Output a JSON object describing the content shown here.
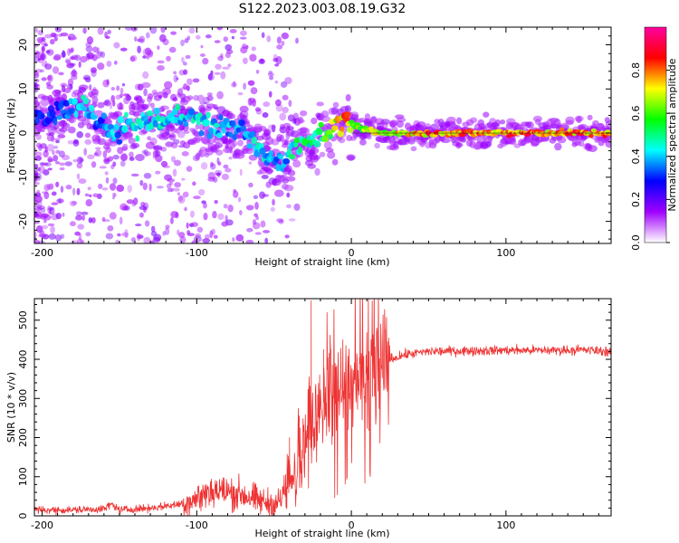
{
  "title": "S122.2023.003.08.19.G32",
  "chart_data": [
    {
      "type": "heatmap",
      "name": "spectrogram",
      "xlabel": "Height of straight line (km)",
      "ylabel": "Frequency (Hz)",
      "xlim": [
        -205,
        168
      ],
      "ylim": [
        -25,
        24
      ],
      "xticks": [
        -200,
        -100,
        0,
        100
      ],
      "yticks": [
        -20,
        -10,
        0,
        10,
        20
      ],
      "colorbar": {
        "label": "Normalized spectral amplitude",
        "range": [
          0,
          1
        ],
        "ticks": [
          "0.0",
          "0.2",
          "0.4",
          "0.6",
          "0.8"
        ],
        "tick_values": [
          0.0,
          0.2,
          0.4,
          0.6,
          0.8
        ],
        "colors": [
          "#ffffff",
          "#a000ff",
          "#0000ff",
          "#00ffff",
          "#00ff00",
          "#ffff00",
          "#ff0000",
          "#ff00a0"
        ]
      },
      "ridge": {
        "x": [
          -200,
          -185,
          -172,
          -165,
          -155,
          -140,
          -125,
          -110,
          -95,
          -80,
          -70,
          -60,
          -50,
          -42,
          -35,
          -25,
          -15,
          -5,
          5,
          20,
          50,
          100,
          168
        ],
        "y": [
          4,
          5,
          6,
          3,
          0,
          2,
          3,
          4,
          2,
          1,
          0,
          -3,
          -6,
          -6,
          -2,
          -1,
          0,
          3,
          1,
          0,
          0,
          0,
          0
        ],
        "level": [
          0.3,
          0.35,
          0.5,
          0.35,
          0.4,
          0.45,
          0.45,
          0.45,
          0.45,
          0.4,
          0.4,
          0.45,
          0.4,
          0.4,
          0.55,
          0.5,
          0.6,
          0.85,
          0.7,
          0.7,
          0.85,
          0.85,
          0.85
        ]
      }
    },
    {
      "type": "line",
      "name": "snr",
      "xlabel": "Height of straight line (km)",
      "ylabel": "SNR (10 * v/v)",
      "xlim": [
        -205,
        168
      ],
      "ylim": [
        0,
        555
      ],
      "xticks": [
        -200,
        -100,
        0,
        100
      ],
      "yticks": [
        0,
        100,
        200,
        300,
        400,
        500
      ],
      "color": "#ee3333",
      "series": [
        {
          "name": "SNR",
          "x": [
            -205,
            -180,
            -160,
            -155,
            -150,
            -130,
            -110,
            -100,
            -90,
            -80,
            -70,
            -60,
            -50,
            -45,
            -40,
            -35,
            -30,
            -26,
            -22,
            -18,
            -10,
            0,
            10,
            20,
            25,
            35,
            50,
            75,
            100,
            125,
            150,
            168
          ],
          "y": [
            15,
            15,
            18,
            30,
            15,
            20,
            30,
            45,
            65,
            60,
            55,
            38,
            30,
            40,
            75,
            120,
            190,
            240,
            260,
            290,
            310,
            320,
            350,
            385,
            400,
            412,
            420,
            422,
            423,
            423,
            424,
            420
          ]
        }
      ],
      "spikes": [
        {
          "x": -26,
          "y": 550
        },
        {
          "x": -18,
          "y": 425
        },
        {
          "x": -10,
          "y": 380
        },
        {
          "x": 5,
          "y": 350
        },
        {
          "x": -40,
          "y": 200
        }
      ]
    }
  ]
}
